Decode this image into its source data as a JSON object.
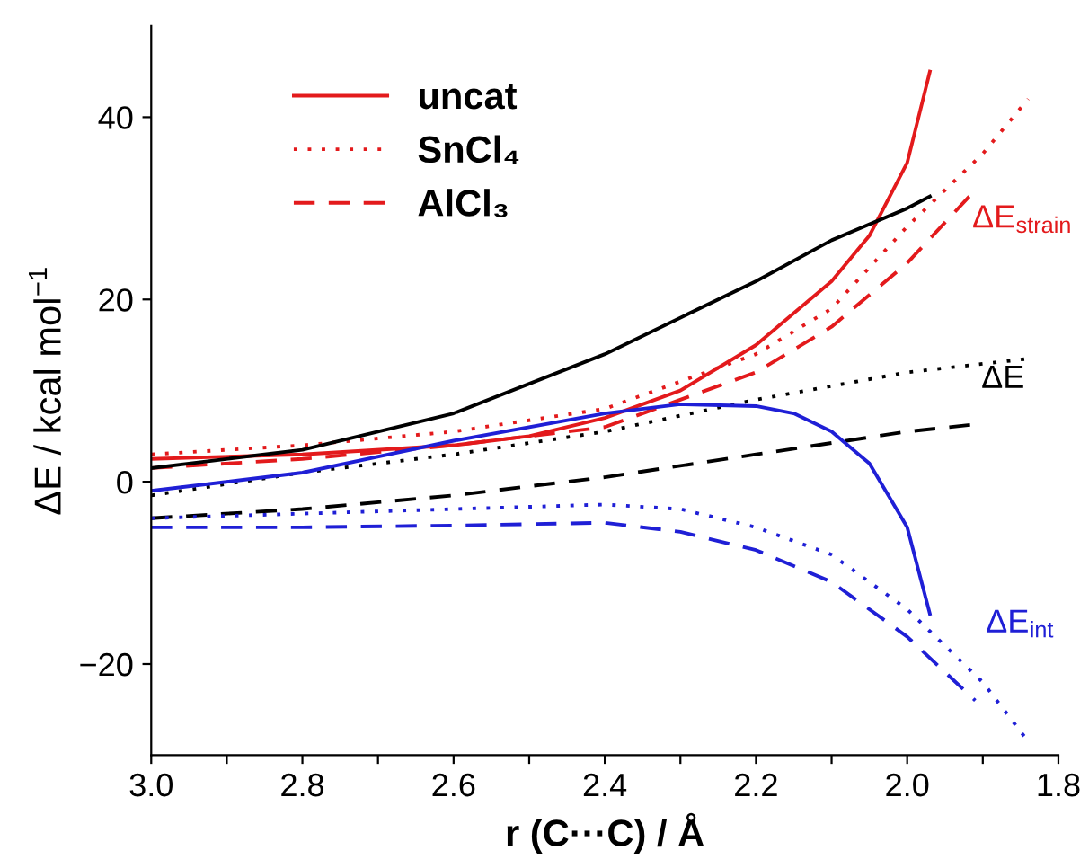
{
  "chart_data": {
    "type": "line",
    "xlabel": "r (C···C) / Å",
    "ylabel": "ΔE / kcal mol$^{−1}$",
    "xlim": [
      3.0,
      1.8
    ],
    "ylim": [
      -30,
      50
    ],
    "xticks": [
      {
        "value": 3.0,
        "label": "3.0"
      },
      {
        "value": 2.9,
        "label": null
      },
      {
        "value": 2.8,
        "label": "2.8"
      },
      {
        "value": 2.7,
        "label": null
      },
      {
        "value": 2.6,
        "label": "2.6"
      },
      {
        "value": 2.5,
        "label": null
      },
      {
        "value": 2.4,
        "label": "2.4"
      },
      {
        "value": 2.3,
        "label": null
      },
      {
        "value": 2.2,
        "label": "2.2"
      },
      {
        "value": 2.1,
        "label": null
      },
      {
        "value": 2.0,
        "label": "2.0"
      },
      {
        "value": 1.9,
        "label": null
      },
      {
        "value": 1.8,
        "label": "1.8"
      }
    ],
    "yticks": [
      {
        "value": -20,
        "label": "−20"
      },
      0,
      20,
      40
    ],
    "grid": false,
    "legend": "top left",
    "marker": "none",
    "series": [
      {
        "name": "uncat",
        "color": "#e31a1c",
        "line_style": "solid",
        "x": [
          3.0,
          2.8,
          2.6,
          2.5,
          2.4,
          2.3,
          2.2,
          2.1,
          2.05,
          2.0,
          1.97
        ],
        "values": [
          2.5,
          3,
          4,
          5,
          7,
          10,
          15,
          22,
          27,
          35,
          45
        ]
      },
      {
        "name": "SnCl₄",
        "color": "#e31a1c",
        "line_style": "dotted",
        "x": [
          3.0,
          2.8,
          2.6,
          2.4,
          2.2,
          2.1,
          2.0,
          1.9,
          1.84
        ],
        "values": [
          3,
          4,
          5.5,
          8,
          14,
          19,
          28,
          36,
          42
        ]
      },
      {
        "name": "AlCl₃",
        "color": "#e31a1c",
        "line_style": "dashed",
        "x": [
          3.0,
          2.8,
          2.6,
          2.4,
          2.2,
          2.1,
          2.0,
          1.91
        ],
        "values": [
          1.5,
          2.5,
          4,
          6,
          12,
          17,
          24,
          32
        ]
      },
      {
        "color": "#000000",
        "line_style": "solid",
        "x": [
          3.0,
          2.8,
          2.6,
          2.4,
          2.2,
          2.1,
          2.0,
          1.97
        ],
        "values": [
          1.5,
          3.5,
          7.5,
          14,
          22,
          26.5,
          30,
          31.3
        ]
      },
      {
        "color": "#000000",
        "line_style": "dotted",
        "x": [
          3.0,
          2.8,
          2.6,
          2.4,
          2.2,
          2.0,
          1.84
        ],
        "values": [
          -1.5,
          1,
          3,
          5.5,
          9,
          12,
          13.5
        ]
      },
      {
        "color": "#000000",
        "line_style": "dashed",
        "x": [
          3.0,
          2.8,
          2.6,
          2.4,
          2.2,
          2.0,
          1.91
        ],
        "values": [
          -4,
          -3,
          -1.5,
          0.5,
          3,
          5.5,
          6.3
        ]
      },
      {
        "color": "#1f1fd6",
        "line_style": "solid",
        "x": [
          3.0,
          2.8,
          2.6,
          2.4,
          2.3,
          2.2,
          2.15,
          2.1,
          2.05,
          2.0,
          1.97
        ],
        "values": [
          -1,
          1,
          4.5,
          7.5,
          8.5,
          8.3,
          7.5,
          5.5,
          2,
          -5,
          -14.5
        ]
      },
      {
        "color": "#1f1fd6",
        "line_style": "dotted",
        "x": [
          3.0,
          2.8,
          2.6,
          2.4,
          2.3,
          2.2,
          2.1,
          2.0,
          1.9,
          1.84
        ],
        "values": [
          -4,
          -3.5,
          -3,
          -2.5,
          -3,
          -5,
          -8,
          -14,
          -22,
          -28.5
        ]
      },
      {
        "color": "#1f1fd6",
        "line_style": "dashed",
        "x": [
          3.0,
          2.8,
          2.6,
          2.4,
          2.3,
          2.2,
          2.1,
          2.0,
          1.91
        ],
        "values": [
          -5,
          -5,
          -4.8,
          -4.5,
          -5.5,
          -7.5,
          -11,
          -17,
          -24
        ]
      }
    ],
    "annotations": [
      "ΔE$_{strain}$",
      "ΔE",
      "ΔE$_{int}$"
    ]
  }
}
